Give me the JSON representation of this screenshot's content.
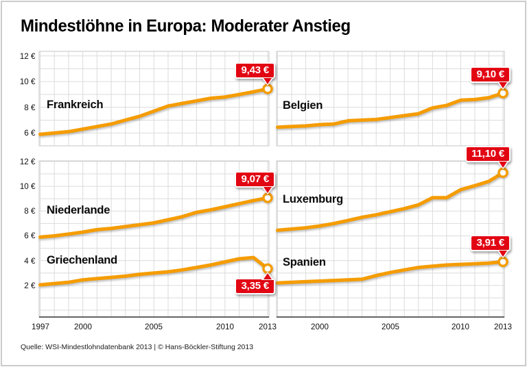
{
  "title": "Mindestlöhne in Europa: Moderater Anstieg",
  "source": "Quelle: WSI-Mindestlohndatenbank 2013 | © Hans-Böckler-Stiftung 2013",
  "colors": {
    "line": "#F59C00",
    "badge": "#E20613",
    "grid": "#DBDBDB",
    "panel_border": "#CFCFCF",
    "axis": "#333333",
    "text": "#000000"
  },
  "currency_suffix": " €",
  "chart_data": [
    {
      "type": "line",
      "panel": "top-left",
      "x": [
        1997,
        1998,
        1999,
        2000,
        2001,
        2002,
        2003,
        2004,
        2005,
        2006,
        2007,
        2008,
        2009,
        2010,
        2011,
        2012,
        2013
      ],
      "ylim": [
        5.0,
        12.35
      ],
      "yticks": [
        6,
        8,
        10,
        12
      ],
      "xticks": [],
      "grid": true,
      "series": [
        {
          "name": "Frankreich",
          "values": [
            5.9,
            6.0,
            6.1,
            6.3,
            6.5,
            6.7,
            7.0,
            7.3,
            7.7,
            8.1,
            8.3,
            8.5,
            8.7,
            8.8,
            9.0,
            9.2,
            9.43
          ],
          "end_label": "9,43 €",
          "badge_position": "above"
        }
      ]
    },
    {
      "type": "line",
      "panel": "top-right",
      "x": [
        1997,
        1998,
        1999,
        2000,
        2001,
        2002,
        2003,
        2004,
        2005,
        2006,
        2007,
        2008,
        2009,
        2010,
        2011,
        2012,
        2013
      ],
      "ylim": [
        5.0,
        12.35
      ],
      "yticks": [],
      "xticks": [],
      "grid": true,
      "series": [
        {
          "name": "Belgien",
          "values": [
            6.45,
            6.5,
            6.55,
            6.65,
            6.7,
            6.95,
            7.0,
            7.05,
            7.2,
            7.35,
            7.5,
            7.95,
            8.15,
            8.55,
            8.6,
            8.75,
            9.1
          ],
          "end_label": "9,10 €",
          "badge_position": "above"
        }
      ]
    },
    {
      "type": "line",
      "panel": "bottom-left",
      "x": [
        1997,
        1998,
        1999,
        2000,
        2001,
        2002,
        2003,
        2004,
        2005,
        2006,
        2007,
        2008,
        2009,
        2010,
        2011,
        2012,
        2013
      ],
      "ylim": [
        -0.55,
        12.05
      ],
      "yticks": [
        2,
        4,
        6,
        8,
        10,
        12
      ],
      "xticks": [
        1997,
        2000,
        2005,
        2010,
        2013
      ],
      "grid": true,
      "series": [
        {
          "name": "Niederlande",
          "values": [
            5.9,
            6.0,
            6.15,
            6.3,
            6.5,
            6.6,
            6.75,
            6.9,
            7.05,
            7.3,
            7.55,
            7.9,
            8.1,
            8.35,
            8.6,
            8.85,
            9.07
          ],
          "end_label": "9,07 €",
          "badge_position": "above"
        },
        {
          "name": "Griechenland",
          "values": [
            2.05,
            2.15,
            2.25,
            2.45,
            2.55,
            2.65,
            2.75,
            2.9,
            3.0,
            3.1,
            3.25,
            3.45,
            3.65,
            3.9,
            4.15,
            4.25,
            3.35
          ],
          "end_label": "3,35 €",
          "badge_position": "below"
        }
      ]
    },
    {
      "type": "line",
      "panel": "bottom-right",
      "x": [
        1997,
        1998,
        1999,
        2000,
        2001,
        2002,
        2003,
        2004,
        2005,
        2006,
        2007,
        2008,
        2009,
        2010,
        2011,
        2012,
        2013
      ],
      "ylim": [
        -0.55,
        12.05
      ],
      "yticks": [],
      "xticks": [
        2000,
        2005,
        2010,
        2013
      ],
      "grid": true,
      "series": [
        {
          "name": "Luxemburg",
          "values": [
            6.45,
            6.55,
            6.65,
            6.8,
            7.0,
            7.25,
            7.5,
            7.7,
            7.95,
            8.2,
            8.5,
            9.08,
            9.08,
            9.73,
            10.05,
            10.41,
            11.1
          ],
          "end_label": "11,10 €",
          "badge_position": "above"
        },
        {
          "name": "Spanien",
          "values": [
            2.2,
            2.25,
            2.3,
            2.35,
            2.4,
            2.45,
            2.5,
            2.8,
            3.05,
            3.25,
            3.45,
            3.55,
            3.65,
            3.7,
            3.75,
            3.8,
            3.91
          ],
          "end_label": "3,91 €",
          "badge_position": "above"
        }
      ]
    }
  ]
}
